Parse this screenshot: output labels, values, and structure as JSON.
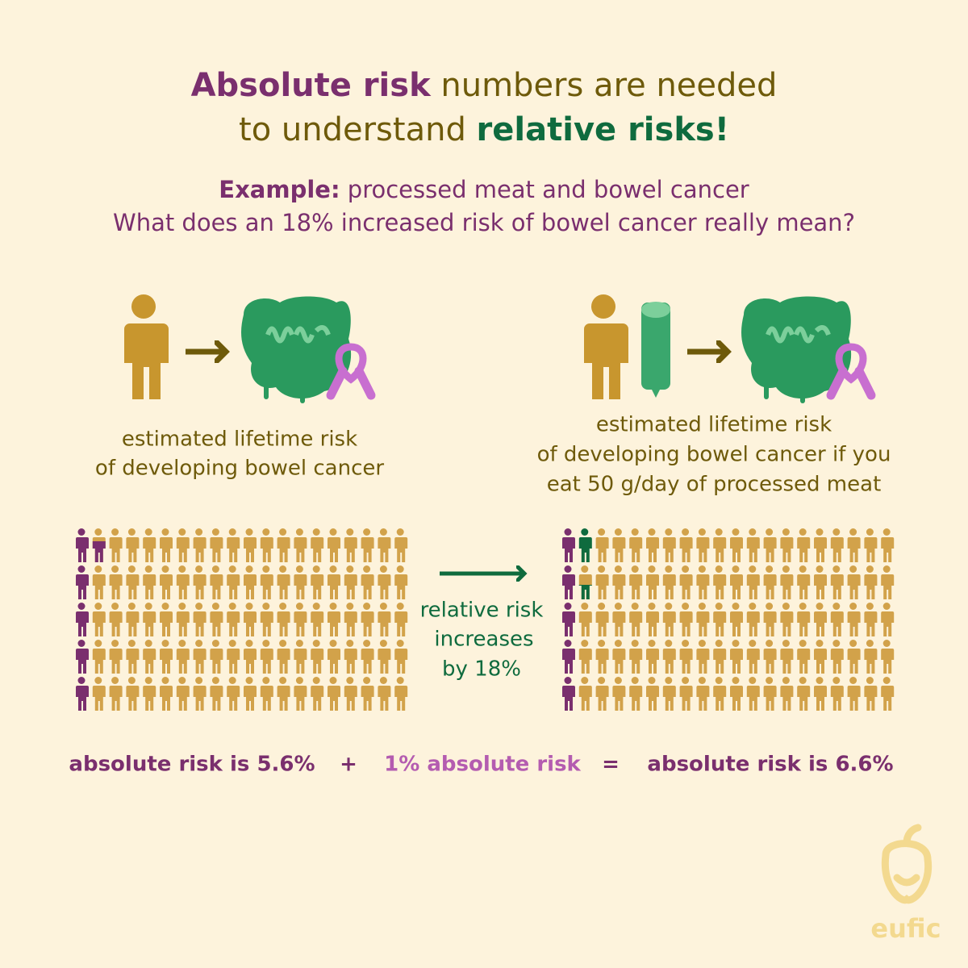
{
  "title": {
    "line1": {
      "highlight": "Absolute risk",
      "rest": " numbers are needed"
    },
    "line2": {
      "rest": "to understand ",
      "highlight": "relative risks!"
    }
  },
  "subtitle": {
    "label": "Example:",
    "topic": " processed meat and bowel cancer",
    "question": "What does an 18% increased risk of bowel cancer really mean?"
  },
  "left_caption": [
    "estimated lifetime risk",
    "of developing bowel cancer"
  ],
  "right_caption": [
    "estimated lifetime risk",
    "of developing bowel cancer if you",
    "eat 50 g/day of processed meat"
  ],
  "arrow_label": [
    "relative risk",
    "increases",
    "by 18%"
  ],
  "equation": {
    "left": "absolute risk is 5.6%",
    "plus": "+",
    "middle": "1% absolute risk",
    "equals": "=",
    "right": "absolute risk is 6.6%"
  },
  "logo": "eufic"
}
